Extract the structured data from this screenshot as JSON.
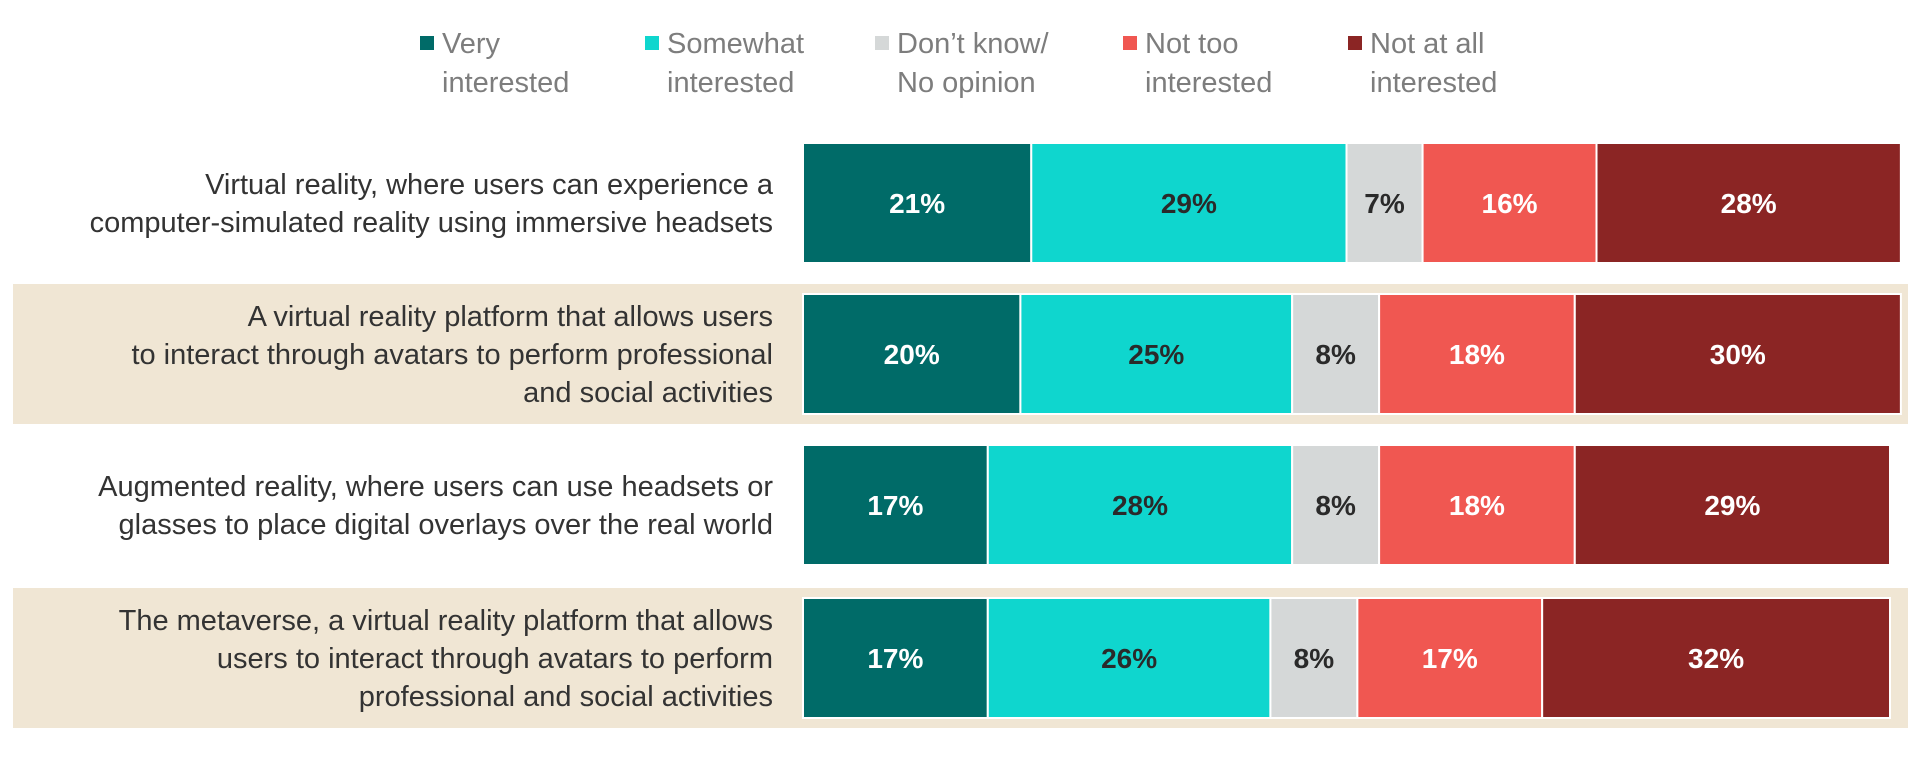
{
  "chart_data": {
    "type": "bar",
    "orientation": "horizontal",
    "stacked": true,
    "normalized": true,
    "xlim": [
      0,
      100
    ],
    "legend_position": "top",
    "grid": false,
    "categories": [
      [
        "Virtual reality, where users can experience a",
        "computer-simulated reality using immersive headsets"
      ],
      [
        "A virtual reality platform that allows users",
        "to interact through avatars to perform professional",
        "and social activities"
      ],
      [
        "Augmented reality, where users can use headsets or",
        "glasses to place digital overlays over the real world"
      ],
      [
        "The metaverse, a virtual reality platform that allows",
        "users to interact through avatars to perform",
        "professional and social activities"
      ]
    ],
    "series": [
      {
        "name": [
          "Very",
          "interested"
        ],
        "color": "#006b68",
        "label_color": "#ffffff",
        "values": [
          21,
          20,
          17,
          17
        ],
        "labels": [
          "21%",
          "20%",
          "17%",
          "17%"
        ]
      },
      {
        "name": [
          "Somewhat",
          "interested"
        ],
        "color": "#0fd6ce",
        "label_color": "#2a2a2a",
        "values": [
          29,
          25,
          28,
          26
        ],
        "labels": [
          "29%",
          "25%",
          "28%",
          "26%"
        ]
      },
      {
        "name": [
          "Don’t know/",
          "No opinion"
        ],
        "color": "#d5d8d8",
        "label_color": "#2a2a2a",
        "values": [
          7,
          8,
          8,
          8
        ],
        "labels": [
          "7%",
          "8%",
          "8%",
          "8%"
        ]
      },
      {
        "name": [
          "Not too",
          "interested"
        ],
        "color": "#f05751",
        "label_color": "#ffffff",
        "values": [
          16,
          18,
          18,
          17
        ],
        "labels": [
          "16%",
          "18%",
          "18%",
          "17%"
        ]
      },
      {
        "name": [
          "Not at all",
          "interested"
        ],
        "color": "#8b2524",
        "label_color": "#ffffff",
        "values": [
          28,
          30,
          29,
          32
        ],
        "labels": [
          "28%",
          "30%",
          "29%",
          "32%"
        ]
      }
    ],
    "row_band_color": "#f0e6d4",
    "banded_rows": [
      1,
      3
    ]
  }
}
